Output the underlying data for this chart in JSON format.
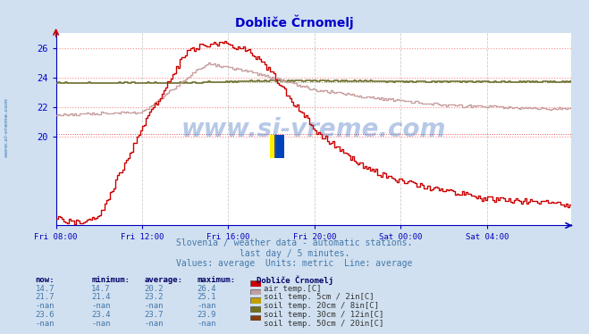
{
  "title": "Dobliče Črnomelj",
  "bg_color": "#d0e0f0",
  "plot_bg_color": "#ffffff",
  "title_color": "#0000cc",
  "axis_color": "#0000bb",
  "grid_color_h": "#ff8888",
  "grid_color_v": "#cccccc",
  "watermark_text": "www.si-vreme.com",
  "subtitle1": "Slovenia / weather data - automatic stations.",
  "subtitle2": "last day / 5 minutes.",
  "subtitle3": "Values: average  Units: metric  Line: average",
  "ytick_color": "#0000cc",
  "xtick_labels": [
    "Fri 08:00",
    "Fri 12:00",
    "Fri 16:00",
    "Fri 20:00",
    "Sat 00:00",
    "Sat 04:00"
  ],
  "xtick_positions": [
    0,
    48,
    96,
    144,
    192,
    240
  ],
  "ylim": [
    14.0,
    27.0
  ],
  "yticks": [
    20,
    22,
    24,
    26
  ],
  "n_points": 288,
  "air_color": "#cc0000",
  "soil5_color": "#c8a0a0",
  "soil30_color": "#707030",
  "legend_colors": {
    "air_temp": "#cc0000",
    "soil_5cm": "#c0a0a0",
    "soil_20cm": "#c0a000",
    "soil_30cm": "#707020",
    "soil_50cm": "#804010"
  },
  "table_headers": [
    "now:",
    "minimum:",
    "average:",
    "maximum:"
  ],
  "table_station": "Dobliče Črnomelj",
  "table_rows": [
    {
      "vals": [
        "14.7",
        "14.7",
        "20.2",
        "26.4"
      ],
      "label": "air temp.[C]",
      "color_key": "air_temp"
    },
    {
      "vals": [
        "21.7",
        "21.4",
        "23.2",
        "25.1"
      ],
      "label": "soil temp. 5cm / 2in[C]",
      "color_key": "soil_5cm"
    },
    {
      "vals": [
        "-nan",
        "-nan",
        "-nan",
        "-nan"
      ],
      "label": "soil temp. 20cm / 8in[C]",
      "color_key": "soil_20cm"
    },
    {
      "vals": [
        "23.6",
        "23.4",
        "23.7",
        "23.9"
      ],
      "label": "soil temp. 30cm / 12in[C]",
      "color_key": "soil_30cm"
    },
    {
      "vals": [
        "-nan",
        "-nan",
        "-nan",
        "-nan"
      ],
      "label": "soil temp. 50cm / 20in[C]",
      "color_key": "soil_50cm"
    }
  ]
}
